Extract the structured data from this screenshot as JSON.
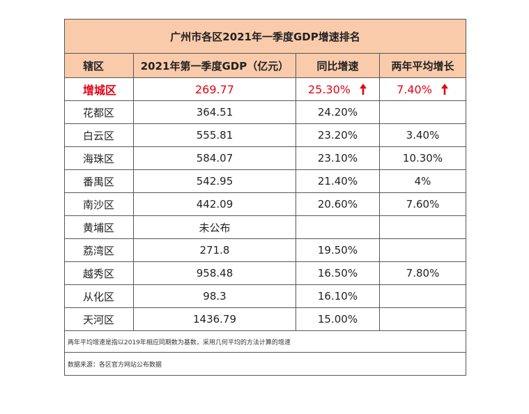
{
  "title": "广州市各区2021年一季度GDP增速排名",
  "headers": {
    "district": "辖区",
    "gdp": "2021年第一季度GDP（亿元）",
    "yoy": "同比增速",
    "avg": "两年平均增长"
  },
  "rows": [
    {
      "district": "增城区",
      "gdp": "269.77",
      "yoy": "25.30%",
      "avg": "7.40%"
    },
    {
      "district": "花都区",
      "gdp": "364.51",
      "yoy": "24.20%",
      "avg": ""
    },
    {
      "district": "白云区",
      "gdp": "555.81",
      "yoy": "23.20%",
      "avg": "3.40%"
    },
    {
      "district": "海珠区",
      "gdp": "584.07",
      "yoy": "23.10%",
      "avg": "10.30%"
    },
    {
      "district": "番禺区",
      "gdp": "542.95",
      "yoy": "21.40%",
      "avg": "4%"
    },
    {
      "district": "南沙区",
      "gdp": "442.09",
      "yoy": "20.60%",
      "avg": "7.60%"
    },
    {
      "district": "黄埔区",
      "gdp": "未公布",
      "yoy": "",
      "avg": ""
    },
    {
      "district": "荔湾区",
      "gdp": "271.8",
      "yoy": "19.50%",
      "avg": ""
    },
    {
      "district": "越秀区",
      "gdp": "958.48",
      "yoy": "16.50%",
      "avg": "7.80%"
    },
    {
      "district": "从化区",
      "gdp": "98.3",
      "yoy": "16.10%",
      "avg": ""
    },
    {
      "district": "天河区",
      "gdp": "1436.79",
      "yoy": "15.00%",
      "avg": ""
    }
  ],
  "note": "两年平均增速是指以2019年相应同期数为基数，采用几何平均的方法计算的增速",
  "source": "数据来源：各区官方网站公布数据",
  "colors": {
    "header_bg": "#f9cbaa",
    "highlight": "#e60012"
  }
}
